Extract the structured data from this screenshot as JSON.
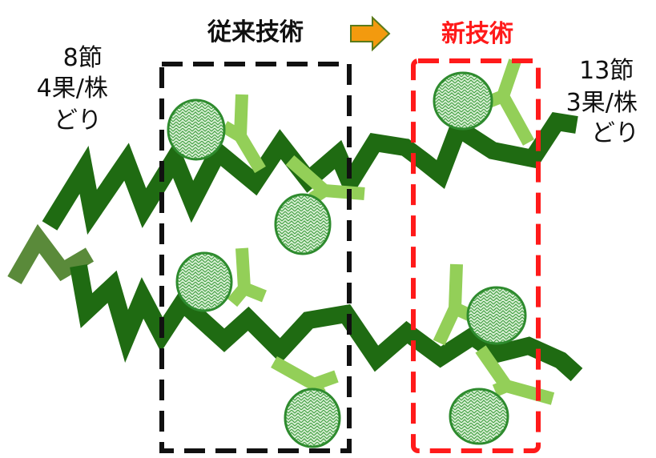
{
  "labels": {
    "conventional": "従来技術",
    "new": "新技術",
    "left_note": [
      "8節",
      "4果/株",
      "どり"
    ],
    "right_note": [
      "13節",
      "3果/株",
      "どり"
    ]
  },
  "colors": {
    "stem": "#1f6b12",
    "stem_old": "#5a8a3a",
    "peduncle": "#93cf58",
    "fruit_fill": "#cfe9c9",
    "fruit_stroke": "#2e8b2e",
    "conventional_box": "#111111",
    "new_box": "#ff1a1a",
    "new_title": "#ff1a1a",
    "arrow": "#f39a0e"
  },
  "icons": {
    "arrow": "right-arrow-icon",
    "fruit": "fruit-icon"
  }
}
